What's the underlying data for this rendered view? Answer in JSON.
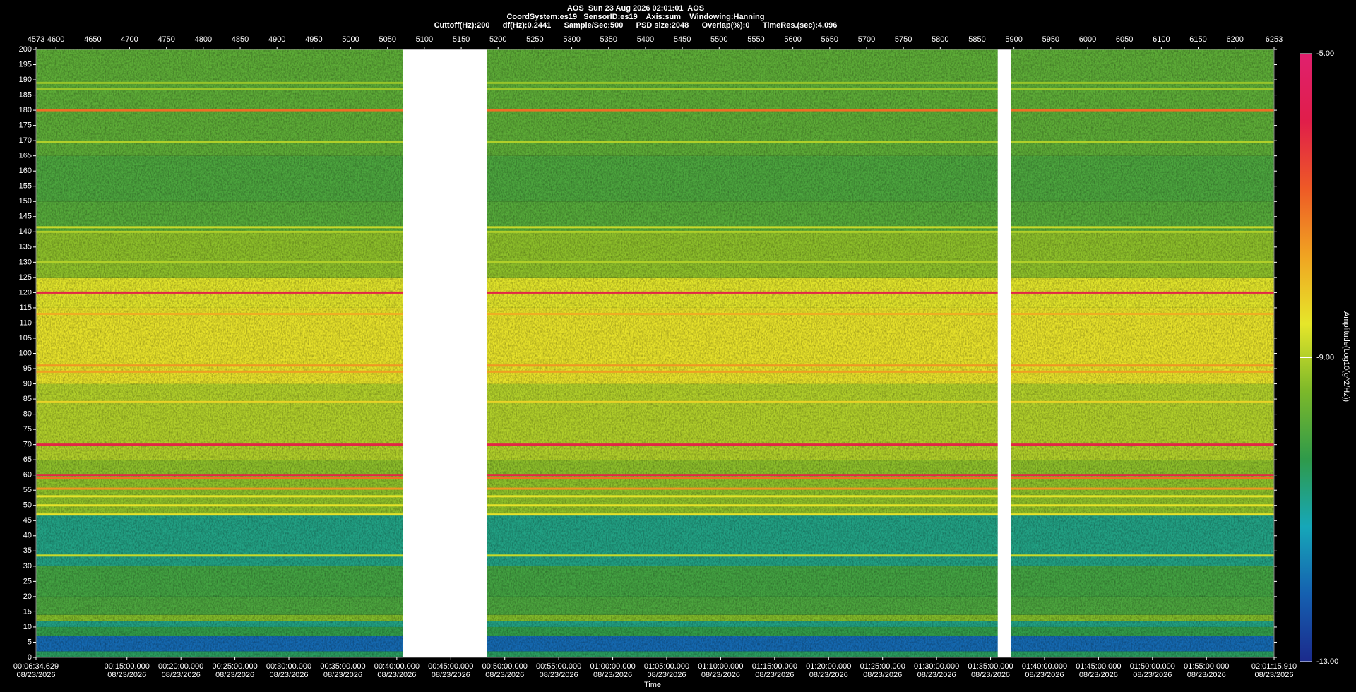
{
  "chart_data": {
    "type": "spectrogram",
    "title": "AOS  Sun 23 Aug 2026 02:01:01  AOS",
    "subtitle": "CoordSystem:es19   SensorID:es19    Axis:sum    Windowing:Hanning",
    "info": "Cuttoff(Hz):200      df(Hz):0.2441      Sample/Sec:500      PSD size:2048      Overlap(%):0      TimeRes.(sec):4.096",
    "x_label": "Time",
    "colorbar_label": "Amplitude(Log10(g^2/Hz))",
    "xlim": [
      4573,
      6253
    ],
    "xticks": [
      4573,
      4600,
      4650,
      4700,
      4750,
      4800,
      4850,
      4900,
      4950,
      5000,
      5050,
      5100,
      5150,
      5200,
      5250,
      5300,
      5350,
      5400,
      5450,
      5500,
      5550,
      5600,
      5650,
      5700,
      5750,
      5800,
      5850,
      5900,
      5950,
      6000,
      6050,
      6100,
      6150,
      6200,
      6253
    ],
    "time_ticks": [
      {
        "value": 4573,
        "label": "00:06:34.629"
      },
      {
        "value": 4696.39,
        "label": "00:15:00.000"
      },
      {
        "value": 4769.63,
        "label": "00:20:00.000"
      },
      {
        "value": 4842.87,
        "label": "00:25:00.000"
      },
      {
        "value": 4916.11,
        "label": "00:30:00.000"
      },
      {
        "value": 4989.36,
        "label": "00:35:00.000"
      },
      {
        "value": 5062.6,
        "label": "00:40:00.000"
      },
      {
        "value": 5135.84,
        "label": "00:45:00.000"
      },
      {
        "value": 5209.08,
        "label": "00:50:00.000"
      },
      {
        "value": 5282.32,
        "label": "00:55:00.000"
      },
      {
        "value": 5355.57,
        "label": "01:00:00.000"
      },
      {
        "value": 5428.81,
        "label": "01:05:00.000"
      },
      {
        "value": 5502.05,
        "label": "01:10:00.000"
      },
      {
        "value": 5575.29,
        "label": "01:15:00.000"
      },
      {
        "value": 5648.54,
        "label": "01:20:00.000"
      },
      {
        "value": 5721.78,
        "label": "01:25:00.000"
      },
      {
        "value": 5795.02,
        "label": "01:30:00.000"
      },
      {
        "value": 5868.26,
        "label": "01:35:00.000"
      },
      {
        "value": 5941.5,
        "label": "01:40:00.000"
      },
      {
        "value": 6014.75,
        "label": "01:45:00.000"
      },
      {
        "value": 6087.99,
        "label": "01:50:00.000"
      },
      {
        "value": 6161.23,
        "label": "01:55:00.000"
      },
      {
        "value": 6253,
        "label": "02:01:15.910"
      }
    ],
    "time_tick_dates": [
      "08/23/2026",
      "08/23/2026",
      "08/23/2026",
      "08/23/2026",
      "08/23/2026",
      "08/23/2026",
      "08/23/2026",
      "08/23/2026",
      "08/23/2026",
      "08/23/2026",
      "08/23/2026",
      "08/23/2026",
      "08/23/2026",
      "08/23/2026",
      "08/23/2026",
      "08/23/2026",
      "08/23/2026",
      "08/23/2026",
      "08/23/2026",
      "08/23/2026",
      "08/23/2026",
      "08/23/2026",
      "08/23/2026"
    ],
    "ylim": [
      0,
      200
    ],
    "yticks": [
      0,
      5,
      10,
      15,
      20,
      25,
      30,
      35,
      40,
      45,
      50,
      55,
      60,
      65,
      70,
      75,
      80,
      85,
      90,
      95,
      100,
      105,
      110,
      115,
      120,
      125,
      130,
      135,
      140,
      145,
      150,
      155,
      160,
      165,
      170,
      175,
      180,
      185,
      190,
      195,
      200
    ],
    "clim": [
      -13,
      -5
    ],
    "cticks": [
      {
        "value": -5,
        "label": "-5.00"
      },
      {
        "value": -9,
        "label": "-9.00"
      },
      {
        "value": -13,
        "label": "-13.00"
      }
    ],
    "colormap": [
      "#1b2a8c",
      "#1560b0",
      "#16a7b8",
      "#2f9a4a",
      "#7cb82a",
      "#e6e62a",
      "#f0a422",
      "#ee5a26",
      "#e01e4a",
      "#e0206e"
    ],
    "band_edges": [
      0,
      2,
      7,
      10,
      12,
      14,
      20,
      30,
      47,
      65,
      90,
      115,
      125,
      140,
      150,
      165,
      180,
      200
    ],
    "band_levels": [
      -10.5,
      -12,
      -10.3,
      -10.8,
      -9.4,
      -10,
      -10.1,
      -10.8,
      -9.3,
      -9,
      -8.5,
      -8.6,
      -9.3,
      -9.9,
      -10,
      -9.8,
      -9.8
    ],
    "line_freqs": [
      180,
      120,
      70,
      60,
      59,
      55.5,
      53,
      50,
      47,
      33.5,
      141.5,
      140,
      130,
      113,
      96,
      94,
      189,
      187,
      169.5,
      84
    ],
    "line_levels": [
      -7,
      -6,
      -6,
      -6,
      -7,
      -7.5,
      -8.5,
      -8.5,
      -8.5,
      -8.8,
      -8.8,
      -9,
      -9,
      -7.8,
      -7.5,
      -7.6,
      -9.2,
      -9.2,
      -9,
      -8.3
    ],
    "gaps": [
      [
        5071,
        5185
      ],
      [
        5878,
        5896
      ]
    ]
  }
}
